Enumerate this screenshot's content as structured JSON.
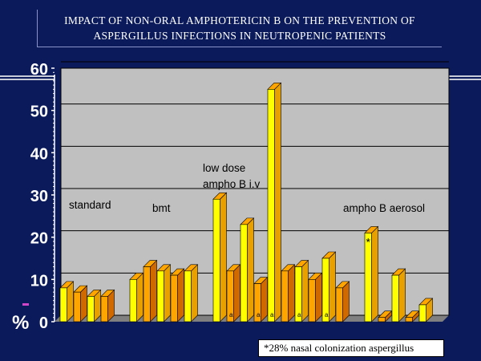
{
  "slide": {
    "title_line1": "IMPACT OF NON-ORAL AMPHOTERICIN B ON THE PREVENTION OF",
    "title_line2": "ASPERGILLUS INFECTIONS IN NEUTROPENIC PATIENTS",
    "footnote": "*28% nasal colonization aspergillus",
    "percent_label": "%",
    "colors": {
      "background": "#0b1a5a",
      "bar_front": "#ffff00",
      "bar_alt": "#ffa500",
      "plot_wall": "#c0c0c0"
    }
  },
  "chart_data": {
    "type": "bar",
    "title": "",
    "ylabel": "%",
    "ylim": [
      0,
      60
    ],
    "yticks": [
      0,
      10,
      20,
      30,
      40,
      50,
      60
    ],
    "grid": true,
    "groups": [
      {
        "label": "standard",
        "label_lines": [
          "standard"
        ],
        "values": [
          8,
          7,
          6,
          6
        ]
      },
      {
        "label": "bmt",
        "label_lines": [
          "bmt"
        ],
        "values": [
          10,
          13,
          12,
          11,
          12
        ]
      },
      {
        "label": "low dose ampho B i.v",
        "label_lines": [
          "low dose",
          "ampho B i.v"
        ],
        "values": [
          29,
          12,
          23,
          9,
          55,
          12,
          13,
          10,
          15,
          8
        ],
        "markers": [
          "",
          "a",
          "",
          "a",
          "a",
          "",
          "a",
          "",
          "a",
          ""
        ]
      },
      {
        "label": "ampho B aerosol",
        "label_lines": [
          "ampho B aerosol"
        ],
        "values": [
          21,
          1,
          11,
          1,
          4
        ],
        "star_index": 0
      }
    ],
    "star_marker": "*",
    "bar_marker_label": "a"
  }
}
